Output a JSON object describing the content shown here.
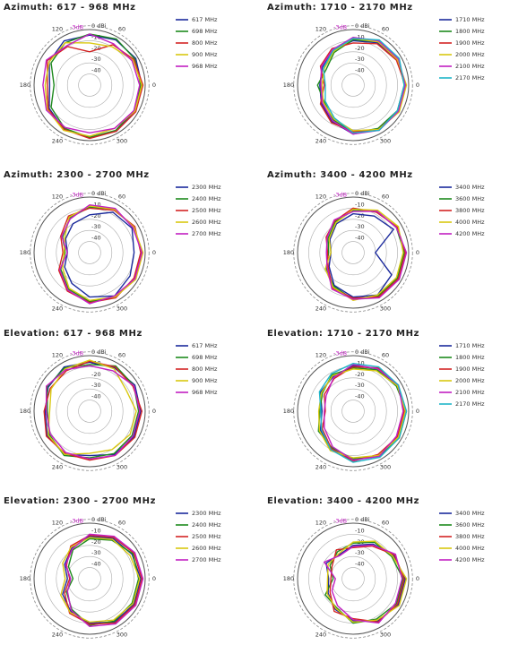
{
  "chart_data": [
    {
      "type": "polar",
      "title": "Azimuth: 617 - 968 MHz",
      "theta": [
        0,
        30,
        60,
        90,
        120,
        150,
        180,
        210,
        240,
        270,
        300,
        330
      ],
      "rlim": [
        -50,
        0
      ],
      "rticks": [
        {
          "value": 0,
          "label": "0 dBi"
        },
        -10,
        -20,
        -30,
        -40
      ],
      "ref_circle": {
        "value": -3,
        "label": "-3dB"
      },
      "angle_ticks": [
        0,
        60,
        120,
        180,
        240,
        300
      ],
      "series": [
        {
          "name": "617 MHz",
          "color": "#1b2a9c",
          "values": [
            -3,
            -2,
            -3,
            -5,
            -4,
            -8,
            -14,
            -8,
            -4,
            -3,
            -2,
            -3
          ]
        },
        {
          "name": "698 MHz",
          "color": "#1e8a1e",
          "values": [
            -4,
            -3,
            -2,
            -4,
            -6,
            -10,
            -18,
            -10,
            -5,
            -3,
            -3,
            -4
          ]
        },
        {
          "name": "800 MHz",
          "color": "#d42424",
          "values": [
            -2,
            -4,
            -8,
            -20,
            -10,
            -6,
            -12,
            -7,
            -4,
            -2,
            -2,
            -2
          ]
        },
        {
          "name": "900 MHz",
          "color": "#d9c810",
          "values": [
            -3,
            -5,
            -10,
            -12,
            -6,
            -8,
            -10,
            -6,
            -3,
            -4,
            -5,
            -3
          ]
        },
        {
          "name": "968 MHz",
          "color": "#c21fc2",
          "values": [
            -5,
            -6,
            -7,
            -4,
            -9,
            -5,
            -8,
            -5,
            -6,
            -7,
            -5,
            -4
          ]
        }
      ]
    },
    {
      "type": "polar",
      "title": "Azimuth: 1710 - 2170 MHz",
      "theta": [
        0,
        30,
        60,
        90,
        120,
        150,
        180,
        210,
        240,
        270,
        300,
        330
      ],
      "rlim": [
        -50,
        0
      ],
      "rticks": [
        {
          "value": 0,
          "label": "0 dBi"
        },
        -10,
        -20,
        -30,
        -40
      ],
      "ref_circle": {
        "value": -3,
        "label": "-3dB"
      },
      "angle_ticks": [
        0,
        60,
        120,
        180,
        240,
        300
      ],
      "series": [
        {
          "name": "1710 MHz",
          "color": "#1b2a9c",
          "values": [
            -3,
            -4,
            -6,
            -10,
            -14,
            -18,
            -20,
            -17,
            -12,
            -6,
            -4,
            -3
          ]
        },
        {
          "name": "1800 MHz",
          "color": "#1e8a1e",
          "values": [
            -4,
            -3,
            -5,
            -9,
            -16,
            -22,
            -18,
            -20,
            -14,
            -7,
            -5,
            -4
          ]
        },
        {
          "name": "1900 MHz",
          "color": "#d42424",
          "values": [
            -3,
            -5,
            -7,
            -12,
            -12,
            -16,
            -24,
            -16,
            -11,
            -8,
            -4,
            -3
          ]
        },
        {
          "name": "2000 MHz",
          "color": "#d9c810",
          "values": [
            -2,
            -4,
            -5,
            -8,
            -15,
            -20,
            -22,
            -19,
            -15,
            -9,
            -4,
            -2
          ]
        },
        {
          "name": "2100 MHz",
          "color": "#c21fc2",
          "values": [
            -3,
            -3,
            -4,
            -7,
            -13,
            -17,
            -21,
            -18,
            -13,
            -6,
            -3,
            -3
          ]
        },
        {
          "name": "2170 MHz",
          "color": "#1fb5c8",
          "values": [
            -4,
            -2,
            -3,
            -8,
            -14,
            -19,
            -25,
            -21,
            -16,
            -7,
            -3,
            -4
          ]
        }
      ]
    },
    {
      "type": "polar",
      "title": "Azimuth: 2300 - 2700 MHz",
      "theta": [
        0,
        30,
        60,
        90,
        120,
        150,
        180,
        210,
        240,
        270,
        300,
        330
      ],
      "rlim": [
        -50,
        0
      ],
      "rticks": [
        {
          "value": 0,
          "label": "0 dBi"
        },
        -10,
        -20,
        -30,
        -40
      ],
      "ref_circle": {
        "value": -3,
        "label": "-3dB"
      },
      "angle_ticks": [
        0,
        60,
        120,
        180,
        240,
        300
      ],
      "series": [
        {
          "name": "2300 MHz",
          "color": "#1b2a9c",
          "values": [
            -10,
            -6,
            -8,
            -16,
            -20,
            -25,
            -30,
            -24,
            -18,
            -10,
            -5,
            -8
          ]
        },
        {
          "name": "2400 MHz",
          "color": "#1e8a1e",
          "values": [
            -3,
            -4,
            -5,
            -9,
            -14,
            -22,
            -28,
            -20,
            -12,
            -6,
            -4,
            -3
          ]
        },
        {
          "name": "2500 MHz",
          "color": "#d42424",
          "values": [
            -4,
            -3,
            -6,
            -10,
            -12,
            -20,
            -26,
            -18,
            -10,
            -5,
            -3,
            -4
          ]
        },
        {
          "name": "2600 MHz",
          "color": "#d9c810",
          "values": [
            -2,
            -4,
            -5,
            -8,
            -13,
            -24,
            -27,
            -22,
            -13,
            -7,
            -4,
            -2
          ]
        },
        {
          "name": "2700 MHz",
          "color": "#c21fc2",
          "values": [
            -3,
            -5,
            -4,
            -7,
            -15,
            -21,
            -30,
            -19,
            -11,
            -4,
            -5,
            -3
          ]
        }
      ]
    },
    {
      "type": "polar",
      "title": "Azimuth: 3400 - 4200 MHz",
      "theta": [
        0,
        30,
        60,
        90,
        120,
        150,
        180,
        210,
        240,
        270,
        300,
        330
      ],
      "rlim": [
        -50,
        0
      ],
      "rticks": [
        {
          "value": 0,
          "label": "0 dBi"
        },
        -10,
        -20,
        -30,
        -40
      ],
      "ref_circle": {
        "value": -3,
        "label": "-3dB"
      },
      "angle_ticks": [
        0,
        60,
        120,
        180,
        240,
        300
      ],
      "series": [
        {
          "name": "3400 MHz",
          "color": "#1b2a9c",
          "values": [
            -30,
            -8,
            -12,
            -15,
            -20,
            -26,
            -30,
            -25,
            -16,
            -10,
            -6,
            -10
          ]
        },
        {
          "name": "3600 MHz",
          "color": "#1e8a1e",
          "values": [
            -4,
            -5,
            -7,
            -12,
            -18,
            -24,
            -28,
            -22,
            -15,
            -8,
            -5,
            -4
          ]
        },
        {
          "name": "3800 MHz",
          "color": "#d42424",
          "values": [
            -3,
            -4,
            -8,
            -10,
            -17,
            -22,
            -27,
            -24,
            -13,
            -9,
            -4,
            -3
          ]
        },
        {
          "name": "4000 MHz",
          "color": "#d9c810",
          "values": [
            -5,
            -3,
            -6,
            -11,
            -19,
            -25,
            -30,
            -21,
            -14,
            -7,
            -6,
            -5
          ]
        },
        {
          "name": "4200 MHz",
          "color": "#c21fc2",
          "values": [
            -2,
            -5,
            -7,
            -13,
            -16,
            -23,
            -26,
            -23,
            -12,
            -8,
            -3,
            -2
          ]
        }
      ]
    },
    {
      "type": "polar",
      "title": "Elevation: 617 - 968 MHz",
      "theta": [
        0,
        30,
        60,
        90,
        120,
        150,
        180,
        210,
        240,
        270,
        300,
        330
      ],
      "rlim": [
        -50,
        0
      ],
      "rticks": [
        {
          "value": 0,
          "label": "0 dBi"
        },
        -10,
        -20,
        -30,
        -40
      ],
      "ref_circle": {
        "value": -3,
        "label": "-3dB"
      },
      "angle_ticks": [
        0,
        60,
        120,
        180,
        240,
        300
      ],
      "series": [
        {
          "name": "617 MHz",
          "color": "#1b2a9c",
          "values": [
            -4,
            -3,
            -5,
            -6,
            -4,
            -7,
            -10,
            -6,
            -5,
            -10,
            -5,
            -4
          ]
        },
        {
          "name": "698 MHz",
          "color": "#1e8a1e",
          "values": [
            -6,
            -4,
            -3,
            -8,
            -5,
            -6,
            -12,
            -8,
            -4,
            -8,
            -6,
            -6
          ]
        },
        {
          "name": "800 MHz",
          "color": "#d42424",
          "values": [
            -3,
            -5,
            -4,
            -5,
            -8,
            -9,
            -9,
            -5,
            -6,
            -6,
            -4,
            -3
          ]
        },
        {
          "name": "900 MHz",
          "color": "#d9c810",
          "values": [
            -8,
            -12,
            -6,
            -4,
            -6,
            -10,
            -14,
            -7,
            -5,
            -12,
            -10,
            -8
          ]
        },
        {
          "name": "968 MHz",
          "color": "#c21fc2",
          "values": [
            -5,
            -4,
            -8,
            -9,
            -7,
            -5,
            -11,
            -9,
            -7,
            -7,
            -4,
            -5
          ]
        }
      ]
    },
    {
      "type": "polar",
      "title": "Elevation: 1710 - 2170 MHz",
      "theta": [
        0,
        30,
        60,
        90,
        120,
        150,
        180,
        210,
        240,
        270,
        300,
        330
      ],
      "rlim": [
        -50,
        0
      ],
      "rticks": [
        {
          "value": 0,
          "label": "0 dBi"
        },
        -10,
        -20,
        -30,
        -40
      ],
      "ref_circle": {
        "value": -3,
        "label": "-3dB"
      },
      "angle_ticks": [
        0,
        60,
        120,
        180,
        240,
        300
      ],
      "series": [
        {
          "name": "1710 MHz",
          "color": "#1b2a9c",
          "values": [
            -3,
            -4,
            -6,
            -9,
            -14,
            -16,
            -22,
            -16,
            -10,
            -6,
            -4,
            -3
          ]
        },
        {
          "name": "1800 MHz",
          "color": "#1e8a1e",
          "values": [
            -2,
            -5,
            -7,
            -11,
            -12,
            -18,
            -20,
            -14,
            -12,
            -7,
            -3,
            -2
          ]
        },
        {
          "name": "1900 MHz",
          "color": "#d42424",
          "values": [
            -4,
            -3,
            -5,
            -10,
            -16,
            -20,
            -25,
            -18,
            -11,
            -5,
            -5,
            -4
          ]
        },
        {
          "name": "2000 MHz",
          "color": "#d9c810",
          "values": [
            -3,
            -4,
            -8,
            -12,
            -13,
            -17,
            -19,
            -15,
            -9,
            -8,
            -4,
            -3
          ]
        },
        {
          "name": "2100 MHz",
          "color": "#c21fc2",
          "values": [
            -5,
            -3,
            -6,
            -8,
            -15,
            -22,
            -24,
            -20,
            -13,
            -6,
            -3,
            -5
          ]
        },
        {
          "name": "2170 MHz",
          "color": "#1fb5c8",
          "values": [
            -2,
            -3,
            -4,
            -7,
            -11,
            -15,
            -21,
            -17,
            -10,
            -4,
            -2,
            -2
          ]
        }
      ]
    },
    {
      "type": "polar",
      "title": "Elevation: 2300 - 2700 MHz",
      "theta": [
        0,
        30,
        60,
        90,
        120,
        150,
        180,
        210,
        240,
        270,
        300,
        330
      ],
      "rlim": [
        -50,
        0
      ],
      "rticks": [
        {
          "value": 0,
          "label": "0 dBi"
        },
        -10,
        -20,
        -30,
        -40
      ],
      "ref_circle": {
        "value": -3,
        "label": "-3dB"
      },
      "angle_ticks": [
        0,
        60,
        120,
        180,
        240,
        300
      ],
      "series": [
        {
          "name": "2300 MHz",
          "color": "#1b2a9c",
          "values": [
            -4,
            -6,
            -8,
            -12,
            -18,
            -24,
            -30,
            -22,
            -16,
            -10,
            -5,
            -4
          ]
        },
        {
          "name": "2400 MHz",
          "color": "#1e8a1e",
          "values": [
            -6,
            -5,
            -10,
            -14,
            -20,
            -28,
            -35,
            -26,
            -18,
            -8,
            -6,
            -6
          ]
        },
        {
          "name": "2500 MHz",
          "color": "#d42424",
          "values": [
            -3,
            -4,
            -7,
            -11,
            -16,
            -26,
            -32,
            -24,
            -14,
            -9,
            -4,
            -3
          ]
        },
        {
          "name": "2600 MHz",
          "color": "#d9c810",
          "values": [
            -5,
            -8,
            -9,
            -13,
            -17,
            -22,
            -28,
            -20,
            -15,
            -11,
            -7,
            -5
          ]
        },
        {
          "name": "2700 MHz",
          "color": "#c21fc2",
          "values": [
            -2,
            -3,
            -6,
            -10,
            -19,
            -25,
            -33,
            -27,
            -17,
            -7,
            -3,
            -2
          ]
        }
      ]
    },
    {
      "type": "polar",
      "title": "Elevation: 3400 - 4200 MHz",
      "theta": [
        0,
        30,
        60,
        90,
        120,
        150,
        180,
        210,
        240,
        270,
        300,
        330
      ],
      "rlim": [
        -50,
        0
      ],
      "rticks": [
        {
          "value": 0,
          "label": "0 dBi"
        },
        -10,
        -20,
        -30,
        -40
      ],
      "ref_circle": {
        "value": -3,
        "label": "-3dB"
      },
      "angle_ticks": [
        0,
        60,
        120,
        180,
        240,
        300
      ],
      "series": [
        {
          "name": "3400 MHz",
          "color": "#1b2a9c",
          "values": [
            -3,
            -8,
            -14,
            -20,
            -25,
            -22,
            -28,
            -24,
            -18,
            -12,
            -6,
            -3
          ]
        },
        {
          "name": "3600 MHz",
          "color": "#1e8a1e",
          "values": [
            -5,
            -10,
            -12,
            -18,
            -22,
            -26,
            -32,
            -21,
            -20,
            -10,
            -8,
            -5
          ]
        },
        {
          "name": "3800 MHz",
          "color": "#d42424",
          "values": [
            -4,
            -7,
            -16,
            -22,
            -20,
            -28,
            -30,
            -26,
            -16,
            -14,
            -5,
            -4
          ]
        },
        {
          "name": "4000 MHz",
          "color": "#d9c810",
          "values": [
            -2,
            -9,
            -11,
            -17,
            -24,
            -24,
            -27,
            -23,
            -19,
            -11,
            -7,
            -2
          ]
        },
        {
          "name": "4200 MHz",
          "color": "#c21fc2",
          "values": [
            -6,
            -6,
            -15,
            -21,
            -26,
            -20,
            -34,
            -28,
            -22,
            -13,
            -4,
            -6
          ]
        }
      ]
    }
  ]
}
